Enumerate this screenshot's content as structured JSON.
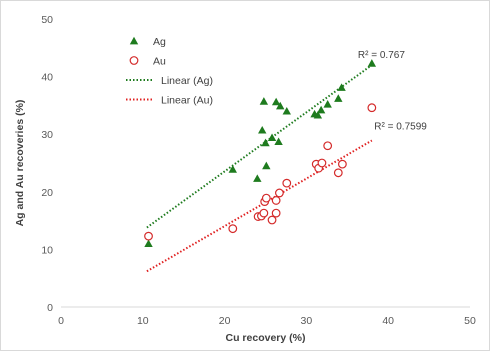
{
  "chart_data": {
    "type": "scatter",
    "title": "",
    "xlabel": "Cu recovery (%)",
    "ylabel": "Ag and Au recoveries (%)",
    "xlim": [
      0,
      50
    ],
    "ylim": [
      0,
      50
    ],
    "x_ticks": [
      "0",
      "10",
      "20",
      "30",
      "40",
      "50"
    ],
    "y_ticks": [
      "0",
      "10",
      "20",
      "30",
      "40",
      "50"
    ],
    "grid": false,
    "legend_position": "top-left",
    "series": [
      {
        "name": "Ag",
        "marker": "triangle",
        "color": "#1e7b1e",
        "points": [
          [
            10.7,
            11.0
          ],
          [
            21.0,
            23.9
          ],
          [
            24.0,
            22.3
          ],
          [
            24.6,
            30.7
          ],
          [
            24.8,
            35.7
          ],
          [
            25.0,
            28.5
          ],
          [
            25.1,
            24.5
          ],
          [
            25.8,
            29.4
          ],
          [
            26.3,
            35.6
          ],
          [
            26.6,
            28.7
          ],
          [
            26.8,
            34.9
          ],
          [
            27.6,
            34.0
          ],
          [
            31.0,
            33.5
          ],
          [
            31.4,
            33.3
          ],
          [
            31.8,
            34.2
          ],
          [
            32.6,
            35.2
          ],
          [
            33.9,
            36.2
          ],
          [
            34.3,
            38.1
          ],
          [
            38.0,
            42.3
          ]
        ]
      },
      {
        "name": "Au",
        "marker": "circle",
        "color": "#d42a2a",
        "points": [
          [
            10.7,
            12.3
          ],
          [
            21.0,
            13.6
          ],
          [
            24.1,
            15.7
          ],
          [
            24.5,
            15.8
          ],
          [
            24.8,
            16.3
          ],
          [
            24.9,
            18.3
          ],
          [
            25.1,
            18.9
          ],
          [
            25.8,
            15.1
          ],
          [
            26.3,
            16.3
          ],
          [
            26.3,
            18.5
          ],
          [
            26.7,
            19.8
          ],
          [
            27.6,
            21.5
          ],
          [
            31.2,
            24.8
          ],
          [
            31.5,
            24.1
          ],
          [
            31.9,
            25.0
          ],
          [
            32.6,
            28.0
          ],
          [
            33.9,
            23.3
          ],
          [
            34.4,
            24.8
          ],
          [
            38.0,
            34.6
          ]
        ]
      },
      {
        "name": "Linear (Ag)",
        "type": "trendline",
        "style": "dotted",
        "color": "#1e7b1e",
        "points": [
          [
            10.5,
            13.8
          ],
          [
            38.0,
            42.0
          ]
        ]
      },
      {
        "name": "Linear (Au)",
        "type": "trendline",
        "style": "dotted",
        "color": "#e02020",
        "points": [
          [
            10.5,
            6.2
          ],
          [
            38.0,
            28.9
          ]
        ]
      }
    ],
    "annotations": [
      {
        "text": "R² = 0.767",
        "x": 36.3,
        "y": 43.2
      },
      {
        "text": "R² = 0.7599",
        "x": 38.3,
        "y": 30.8
      }
    ]
  }
}
